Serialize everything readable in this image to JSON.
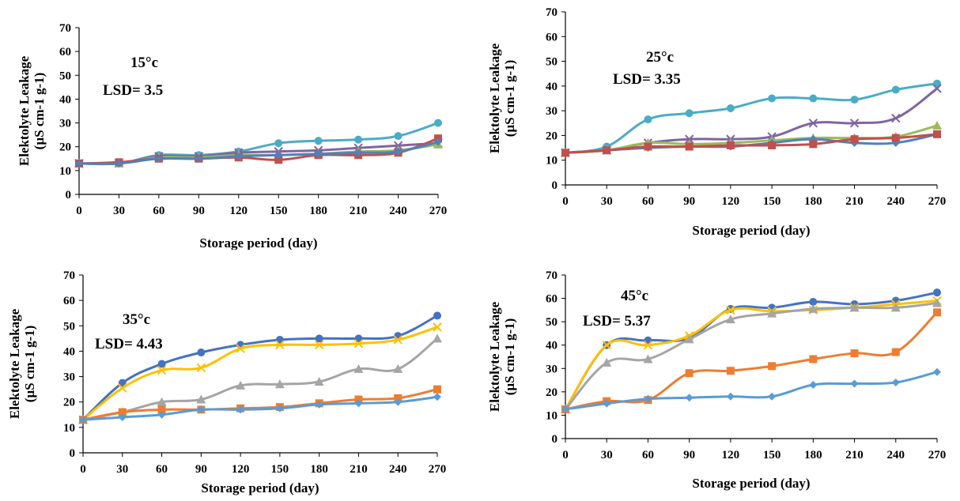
{
  "chart_data": [
    {
      "type": "line",
      "annotation_lines": [
        "15°c",
        "LSD= 3.5"
      ],
      "xlabel": "Storage period (day)",
      "ylabel_lines": [
        "Elektolyte Leakage",
        "(µS cm-1 g-1)"
      ],
      "x": [
        0,
        30,
        60,
        90,
        120,
        150,
        180,
        210,
        240,
        270
      ],
      "ylim": [
        0,
        70
      ],
      "yticks": [
        0,
        10,
        20,
        30,
        40,
        50,
        60,
        70
      ],
      "series": [
        {
          "color": "#4bacc6",
          "marker": "circle",
          "values": [
            13,
            13,
            16.5,
            16.5,
            18,
            21.5,
            22.5,
            23,
            24.5,
            30
          ]
        },
        {
          "color": "#8064a2",
          "marker": "x",
          "values": [
            13,
            13,
            16,
            16,
            17.5,
            18,
            18.5,
            19.5,
            20.5,
            21.5
          ]
        },
        {
          "color": "#9bbb59",
          "marker": "triangle",
          "values": [
            13,
            13,
            15.5,
            15.5,
            16.5,
            16.5,
            17,
            18,
            18.5,
            21
          ]
        },
        {
          "color": "#c0504d",
          "marker": "square",
          "values": [
            13,
            13.5,
            15,
            15,
            15.5,
            14.5,
            16.5,
            16.5,
            17.5,
            23.5
          ]
        },
        {
          "color": "#4f81bd",
          "marker": "diamond",
          "values": [
            13,
            13,
            15,
            15,
            16,
            16.5,
            17,
            17.5,
            18,
            22
          ]
        }
      ]
    },
    {
      "type": "line",
      "annotation_lines": [
        "25°c",
        "LSD= 3.35"
      ],
      "xlabel": "Storage period (day)",
      "ylabel_lines": [
        "Elektolyte Leakage",
        "(µS cm-1 g-1)"
      ],
      "x": [
        0,
        30,
        60,
        90,
        120,
        150,
        180,
        210,
        240,
        270
      ],
      "ylim": [
        0,
        70
      ],
      "yticks": [
        0,
        10,
        20,
        30,
        40,
        50,
        60,
        70
      ],
      "series": [
        {
          "color": "#4bacc6",
          "marker": "circle",
          "values": [
            13,
            15.5,
            26.5,
            29,
            31,
            35,
            35,
            34.5,
            38.5,
            41
          ]
        },
        {
          "color": "#8064a2",
          "marker": "x",
          "values": [
            13,
            14,
            17,
            18.5,
            18.5,
            19.5,
            25,
            25,
            27,
            39
          ]
        },
        {
          "color": "#9bbb59",
          "marker": "triangle",
          "values": [
            13,
            14,
            17,
            16.5,
            17,
            18,
            19,
            19,
            19.5,
            24
          ]
        },
        {
          "color": "#4f81bd",
          "marker": "diamond",
          "values": [
            13,
            14,
            15,
            15.5,
            15.5,
            17,
            18.5,
            17,
            17,
            20.5
          ]
        },
        {
          "color": "#c0504d",
          "marker": "square",
          "values": [
            13,
            14,
            15.5,
            15.5,
            16,
            16,
            16.5,
            18.5,
            19,
            20.5
          ]
        }
      ]
    },
    {
      "type": "line",
      "annotation_lines": [
        "35°c",
        "LSD= 4.43"
      ],
      "xlabel": "Storage period (day)",
      "ylabel_lines": [
        "Elektolyte Leakage",
        "(µS cm-1 g-1)"
      ],
      "x": [
        0,
        30,
        60,
        90,
        120,
        150,
        180,
        210,
        240,
        270
      ],
      "ylim": [
        0,
        70
      ],
      "yticks": [
        0,
        10,
        20,
        30,
        40,
        50,
        60,
        70
      ],
      "series": [
        {
          "color": "#4472c4",
          "marker": "circle",
          "values": [
            13,
            27.5,
            35,
            39.5,
            42.5,
            44.5,
            45,
            45,
            46,
            54
          ]
        },
        {
          "color": "#ffc000",
          "marker": "x",
          "values": [
            13,
            25.5,
            32.5,
            33.5,
            41,
            42.5,
            42.5,
            43,
            44.5,
            49.5
          ]
        },
        {
          "color": "#a5a5a5",
          "marker": "triangle",
          "values": [
            13,
            16,
            20,
            21,
            26.5,
            27,
            28,
            33,
            33,
            45
          ]
        },
        {
          "color": "#ed7d31",
          "marker": "square",
          "values": [
            13,
            16,
            17,
            17,
            17.5,
            18,
            19.5,
            21,
            21.5,
            25
          ]
        },
        {
          "color": "#5b9bd5",
          "marker": "diamond",
          "values": [
            13,
            14,
            15,
            17,
            17,
            17.5,
            19,
            19.5,
            20,
            22
          ]
        }
      ]
    },
    {
      "type": "line",
      "annotation_lines": [
        "45°c",
        "LSD= 5.37"
      ],
      "xlabel": "Storage period (day)",
      "ylabel_lines": [
        "Elektolyte Leakage",
        "(µS cm-1 g-1)"
      ],
      "x": [
        0,
        30,
        60,
        90,
        120,
        150,
        180,
        210,
        240,
        270
      ],
      "ylim": [
        0,
        70
      ],
      "yticks": [
        0,
        10,
        20,
        30,
        40,
        50,
        60,
        70
      ],
      "series": [
        {
          "color": "#4472c4",
          "marker": "circle",
          "values": [
            12.5,
            40,
            42,
            43,
            55.5,
            56,
            58.5,
            57.5,
            59,
            62.5
          ]
        },
        {
          "color": "#ffc000",
          "marker": "x",
          "values": [
            12.5,
            40,
            40,
            44,
            55,
            54.5,
            55,
            56,
            57.5,
            59
          ]
        },
        {
          "color": "#a5a5a5",
          "marker": "triangle",
          "values": [
            12.5,
            32.5,
            34,
            42.5,
            51,
            53.5,
            55.5,
            56,
            56,
            58
          ]
        },
        {
          "color": "#ed7d31",
          "marker": "square",
          "values": [
            12.5,
            16,
            16.5,
            28,
            29,
            31,
            34,
            36.5,
            37,
            54
          ]
        },
        {
          "color": "#5b9bd5",
          "marker": "diamond",
          "values": [
            12.5,
            15,
            17,
            17.5,
            18,
            18,
            23,
            23.5,
            24,
            28.5
          ]
        }
      ]
    }
  ]
}
